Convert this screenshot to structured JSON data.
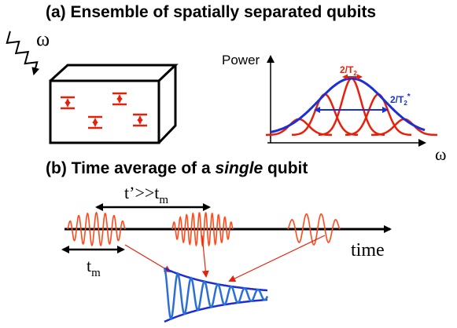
{
  "panel_a": {
    "title": "(a) Ensemble of spatially separated qubits",
    "omega_symbol": "ω",
    "plot": {
      "ylabel": "Power",
      "xlabel": "ω",
      "narrow_width_label": "2/T",
      "narrow_width_sub": "2",
      "broad_width_label": "2/T",
      "broad_width_sub": "2",
      "broad_width_sup": "*"
    }
  },
  "panel_b": {
    "title_prefix": "(b) Time average of a ",
    "title_italic": "single",
    "title_suffix": " qubit",
    "interval_label": "t’>>t",
    "interval_sub": "m",
    "measure_label": "t",
    "measure_sub": "m",
    "axis_label": "time"
  },
  "colors": {
    "red": "#e8200a",
    "orange_red": "#ff4a1a",
    "blue": "#1a2fd6",
    "light_blue": "#2a6fd8",
    "black": "#000000"
  }
}
